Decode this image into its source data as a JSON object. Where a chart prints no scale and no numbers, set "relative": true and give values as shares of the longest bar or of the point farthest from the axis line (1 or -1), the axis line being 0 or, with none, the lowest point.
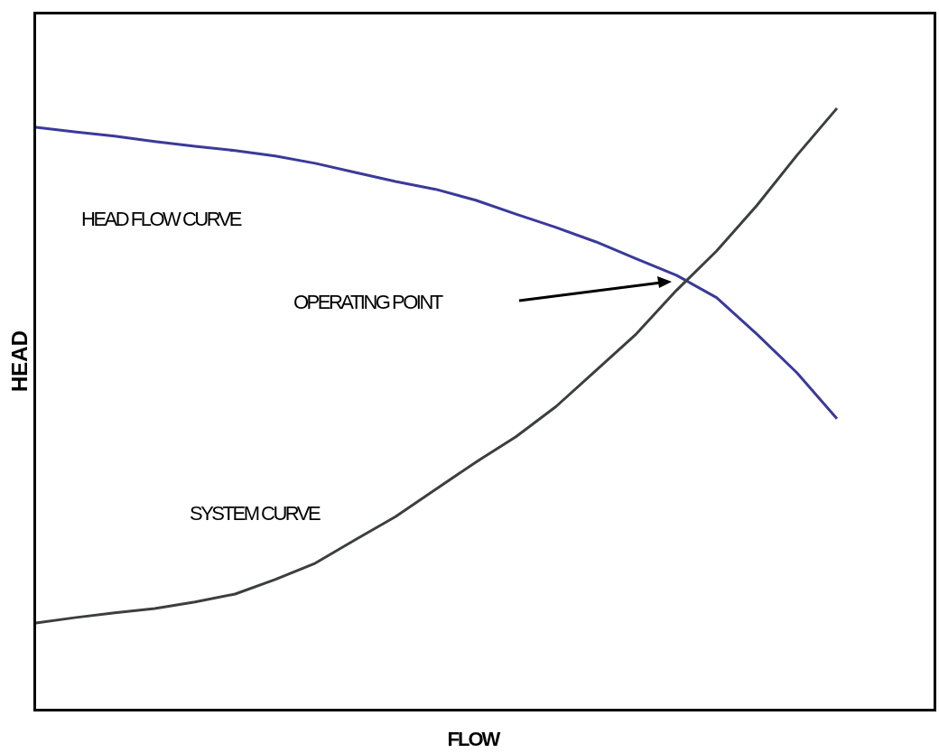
{
  "chart_data": {
    "type": "line",
    "relative": true,
    "xlabel": "FLOW",
    "ylabel": "HEAD",
    "marker": "none",
    "line_style": "solid",
    "categories": [
      null,
      null,
      null,
      null,
      null,
      null,
      null,
      null,
      null,
      null,
      null,
      null,
      null,
      null,
      null,
      null,
      null,
      null,
      null,
      null,
      null
    ],
    "series": [
      {
        "name": "HEAD FLOW CURVE",
        "color": "#3a3a9a",
        "values": [
          0.969,
          0.961,
          0.954,
          0.945,
          0.937,
          0.93,
          0.921,
          0.909,
          0.894,
          0.879,
          0.866,
          0.848,
          0.825,
          0.803,
          0.779,
          0.751,
          0.724,
          0.687,
          0.627,
          0.563,
          0.487
        ]
      },
      {
        "name": "SYSTEM CURVE",
        "color": "#3c3f3f",
        "values": [
          0.149,
          0.158,
          0.166,
          0.173,
          0.184,
          0.197,
          0.221,
          0.248,
          0.287,
          0.325,
          0.37,
          0.415,
          0.457,
          0.507,
          0.567,
          0.627,
          0.699,
          0.764,
          0.839,
          0.922,
          1.0
        ]
      }
    ],
    "annotations": [
      "OPERATING POINT"
    ]
  }
}
